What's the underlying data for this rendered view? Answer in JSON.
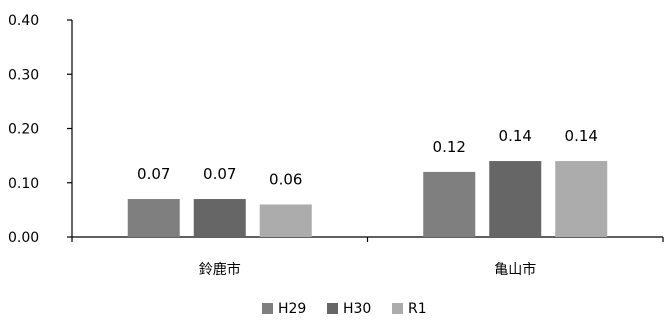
{
  "chart_data": {
    "type": "bar",
    "categories": [
      "鈴鹿市",
      "亀山市"
    ],
    "series": [
      {
        "name": "H29",
        "values": [
          0.07,
          0.12
        ],
        "color": "#7f7f7f"
      },
      {
        "name": "H30",
        "values": [
          0.07,
          0.14
        ],
        "color": "#666666"
      },
      {
        "name": "R1",
        "values": [
          0.06,
          0.14
        ],
        "color": "#acacac"
      }
    ],
    "data_labels": [
      [
        "0.07",
        "0.12"
      ],
      [
        "0.07",
        "0.14"
      ],
      [
        "0.06",
        "0.14"
      ]
    ],
    "ylim": [
      0,
      0.4
    ],
    "yticks": [
      0,
      0.1,
      0.2,
      0.3,
      0.4
    ],
    "ytick_labels": [
      "0.00",
      "0.10",
      "0.20",
      "0.30",
      "0.40"
    ],
    "title": "",
    "xlabel": "",
    "ylabel": "",
    "grid": false,
    "legend_position": "bottom"
  }
}
